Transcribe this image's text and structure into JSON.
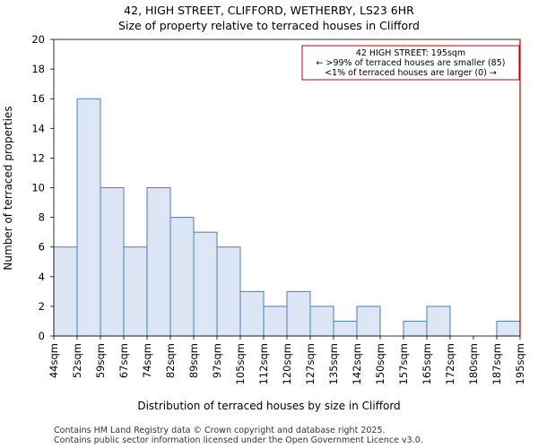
{
  "chart_data": {
    "type": "bar",
    "title_line1": "42, HIGH STREET, CLIFFORD, WETHERBY, LS23 6HR",
    "title_line2": "Size of property relative to terraced houses in Clifford",
    "xlabel": "Distribution of terraced houses by size in Clifford",
    "ylabel": "Number of terraced properties",
    "ylim": [
      0,
      20
    ],
    "yticks": [
      0,
      2,
      4,
      6,
      8,
      10,
      12,
      14,
      16,
      18,
      20
    ],
    "bin_edges": [
      "44sqm",
      "52sqm",
      "59sqm",
      "67sqm",
      "74sqm",
      "82sqm",
      "89sqm",
      "97sqm",
      "105sqm",
      "112sqm",
      "120sqm",
      "127sqm",
      "135sqm",
      "142sqm",
      "150sqm",
      "157sqm",
      "165sqm",
      "172sqm",
      "180sqm",
      "187sqm",
      "195sqm"
    ],
    "values": [
      6,
      16,
      10,
      6,
      10,
      8,
      7,
      6,
      3,
      2,
      3,
      2,
      1,
      2,
      0,
      1,
      2,
      0,
      0,
      1
    ],
    "bar_color": "#dce6f4",
    "bar_edge_color": "#4a7cc0",
    "marker": {
      "value_label": "195sqm",
      "color": "#c00000",
      "annotation": [
        "42 HIGH STREET: 195sqm",
        "← >99% of terraced houses are smaller (85)",
        "<1% of terraced houses are larger (0) →"
      ]
    }
  },
  "footer": {
    "line1": "Contains HM Land Registry data © Crown copyright and database right 2025.",
    "line2": "Contains public sector information licensed under the Open Government Licence v3.0."
  }
}
